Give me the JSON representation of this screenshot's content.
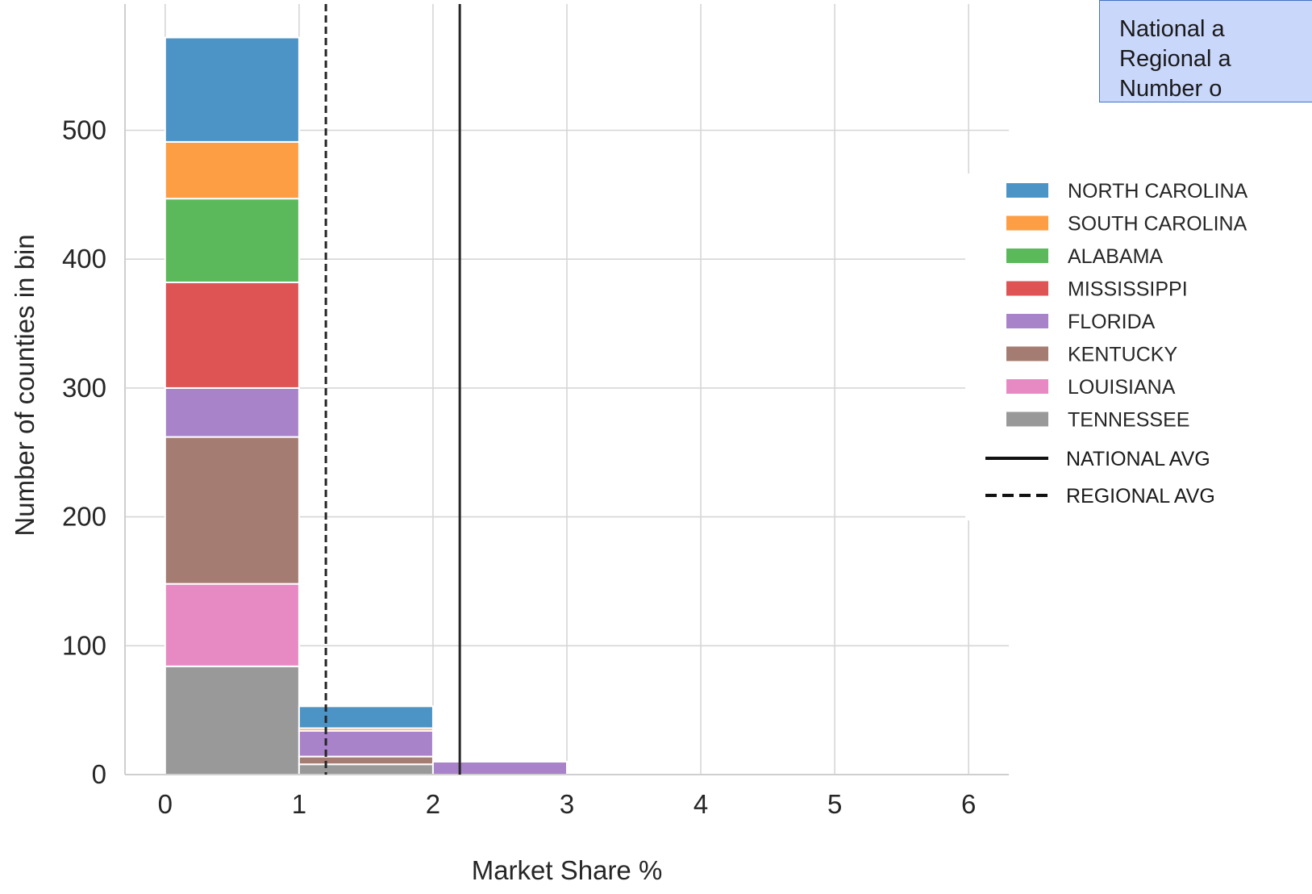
{
  "info_box": {
    "lines": [
      "National a",
      "Regional a",
      "Number o"
    ]
  },
  "chart_data": {
    "type": "bar",
    "stacked": true,
    "xlabel": "Market Share %",
    "ylabel": "Number of counties in bin",
    "x_ticks": [
      "0",
      "1",
      "2",
      "3",
      "4",
      "5",
      "6"
    ],
    "y_ticks": [
      "0",
      "100",
      "200",
      "300",
      "400",
      "500"
    ],
    "xlim": [
      -0.3,
      6.3
    ],
    "ylim": [
      0,
      598
    ],
    "grid": true,
    "legend_position": "right",
    "bins": [
      [
        0,
        1
      ],
      [
        1,
        2
      ],
      [
        2,
        3
      ]
    ],
    "series": [
      {
        "name": "TENNESSEE",
        "color": "#999999",
        "values": [
          84,
          8,
          0
        ]
      },
      {
        "name": "LOUISIANA",
        "color": "#e78ac3",
        "values": [
          64,
          0,
          0
        ]
      },
      {
        "name": "KENTUCKY",
        "color": "#a57c72",
        "values": [
          114,
          6,
          0
        ]
      },
      {
        "name": "FLORIDA",
        "color": "#a883c9",
        "values": [
          38,
          20,
          10
        ]
      },
      {
        "name": "MISSISSIPPI",
        "color": "#de5354",
        "values": [
          82,
          0,
          0
        ]
      },
      {
        "name": "ALABAMA",
        "color": "#5bb85b",
        "values": [
          65,
          0,
          0
        ]
      },
      {
        "name": "SOUTH CAROLINA",
        "color": "#fd9e44",
        "values": [
          44,
          2,
          0
        ]
      },
      {
        "name": "NORTH CAROLINA",
        "color": "#4c93c6",
        "values": [
          81,
          17,
          0
        ]
      }
    ],
    "legend_order": [
      "NORTH CAROLINA",
      "SOUTH CAROLINA",
      "ALABAMA",
      "MISSISSIPPI",
      "FLORIDA",
      "KENTUCKY",
      "LOUISIANA",
      "TENNESSEE"
    ],
    "reference_lines": [
      {
        "name": "NATIONAL AVG",
        "x": 2.2,
        "style": "solid",
        "color": "#262626"
      },
      {
        "name": "REGIONAL AVG",
        "x": 1.2,
        "style": "dashed",
        "color": "#262626"
      }
    ]
  }
}
